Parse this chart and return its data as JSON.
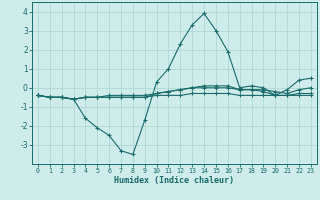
{
  "xlabel": "Humidex (Indice chaleur)",
  "ylabel": "",
  "background_color": "#ceecea",
  "grid_color": "#b0d8d5",
  "line_color": "#1a6b6b",
  "x_values": [
    0,
    1,
    2,
    3,
    4,
    5,
    6,
    7,
    8,
    9,
    10,
    11,
    12,
    13,
    14,
    15,
    16,
    17,
    18,
    19,
    20,
    21,
    22,
    23
  ],
  "series1": [
    -0.4,
    -0.5,
    -0.5,
    -0.6,
    -1.6,
    -2.1,
    -2.5,
    -3.3,
    -3.5,
    -1.7,
    0.3,
    1.0,
    2.3,
    3.3,
    3.9,
    3.0,
    1.9,
    0.0,
    0.1,
    0.0,
    -0.4,
    -0.1,
    0.4,
    0.5
  ],
  "series2": [
    -0.4,
    -0.5,
    -0.5,
    -0.6,
    -0.5,
    -0.5,
    -0.5,
    -0.5,
    -0.5,
    -0.5,
    -0.4,
    -0.4,
    -0.4,
    -0.3,
    -0.3,
    -0.3,
    -0.3,
    -0.4,
    -0.4,
    -0.4,
    -0.4,
    -0.4,
    -0.4,
    -0.4
  ],
  "series3": [
    -0.4,
    -0.5,
    -0.5,
    -0.6,
    -0.5,
    -0.5,
    -0.5,
    -0.5,
    -0.5,
    -0.5,
    -0.3,
    -0.2,
    -0.1,
    0.0,
    0.0,
    0.0,
    0.0,
    -0.1,
    -0.1,
    -0.1,
    -0.2,
    -0.3,
    -0.1,
    0.0
  ],
  "series4": [
    -0.4,
    -0.5,
    -0.5,
    -0.6,
    -0.5,
    -0.5,
    -0.4,
    -0.4,
    -0.4,
    -0.4,
    -0.3,
    -0.2,
    -0.1,
    0.0,
    0.1,
    0.1,
    0.1,
    -0.1,
    -0.1,
    -0.2,
    -0.4,
    -0.4,
    -0.3,
    -0.3
  ],
  "ylim": [
    -4.0,
    4.5
  ],
  "yticks": [
    -3,
    -2,
    -1,
    0,
    1,
    2,
    3,
    4
  ],
  "xticks": [
    0,
    1,
    2,
    3,
    4,
    5,
    6,
    7,
    8,
    9,
    10,
    11,
    12,
    13,
    14,
    15,
    16,
    17,
    18,
    19,
    20,
    21,
    22,
    23
  ]
}
